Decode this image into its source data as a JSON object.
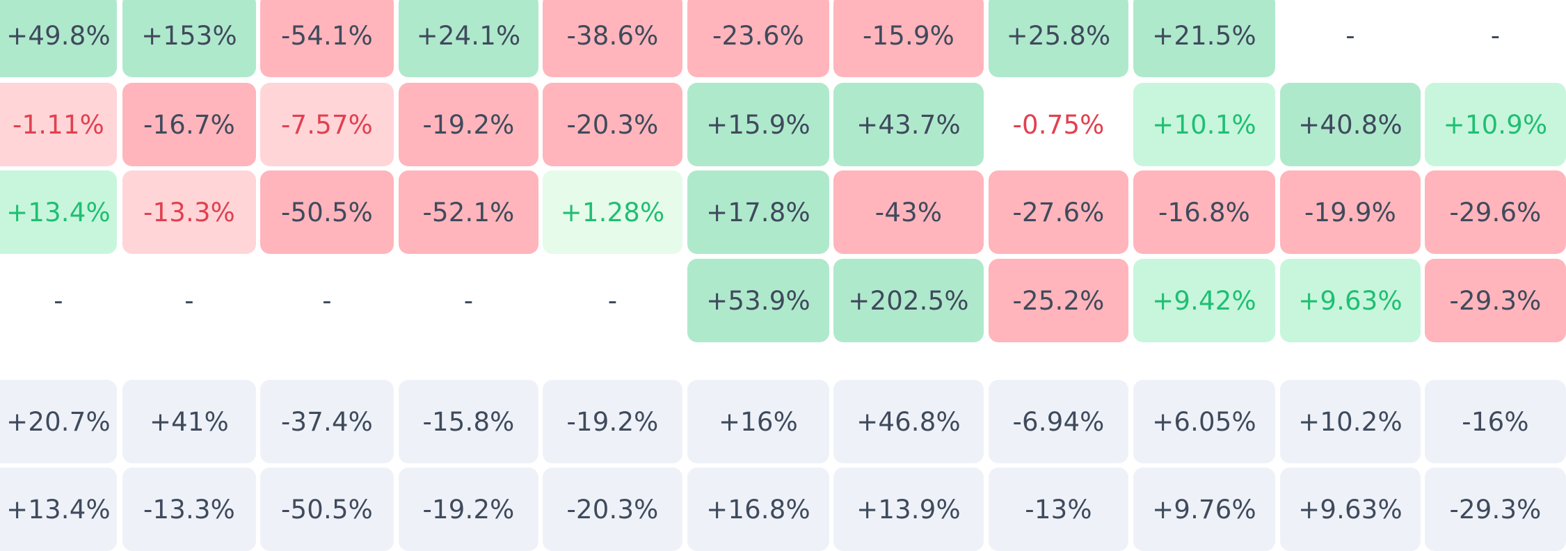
{
  "rows": [
    {
      "cells": [
        {
          "text": "+49.8%",
          "style": "green"
        },
        {
          "text": "+153%",
          "style": "green"
        },
        {
          "text": "-54.1%",
          "style": "red"
        },
        {
          "text": "+24.1%",
          "style": "green"
        },
        {
          "text": "-38.6%",
          "style": "red"
        },
        {
          "text": "-23.6%",
          "style": "red"
        },
        {
          "text": "-15.9%",
          "style": "red"
        },
        {
          "text": "+25.8%",
          "style": "green"
        },
        {
          "text": "+21.5%",
          "style": "green"
        },
        {
          "text": "-",
          "style": "none"
        },
        {
          "text": "-",
          "style": "none"
        }
      ]
    },
    {
      "cells": [
        {
          "text": "-1.11%",
          "style": "lred"
        },
        {
          "text": "-16.7%",
          "style": "red"
        },
        {
          "text": "-7.57%",
          "style": "lred"
        },
        {
          "text": "-19.2%",
          "style": "red"
        },
        {
          "text": "-20.3%",
          "style": "red"
        },
        {
          "text": "+15.9%",
          "style": "green"
        },
        {
          "text": "+43.7%",
          "style": "green"
        },
        {
          "text": "-0.75%",
          "style": "nonered"
        },
        {
          "text": "+10.1%",
          "style": "lgreen"
        },
        {
          "text": "+40.8%",
          "style": "green"
        },
        {
          "text": "+10.9%",
          "style": "lgreen"
        }
      ]
    },
    {
      "cells": [
        {
          "text": "+13.4%",
          "style": "lgreen"
        },
        {
          "text": "-13.3%",
          "style": "lred"
        },
        {
          "text": "-50.5%",
          "style": "red"
        },
        {
          "text": "-52.1%",
          "style": "red"
        },
        {
          "text": "+1.28%",
          "style": "pgreen"
        },
        {
          "text": "+17.8%",
          "style": "green"
        },
        {
          "text": "-43%",
          "style": "red"
        },
        {
          "text": "-27.6%",
          "style": "red"
        },
        {
          "text": "-16.8%",
          "style": "red"
        },
        {
          "text": "-19.9%",
          "style": "red"
        },
        {
          "text": "-29.6%",
          "style": "red"
        }
      ]
    },
    {
      "cells": [
        {
          "text": "-",
          "style": "none"
        },
        {
          "text": "-",
          "style": "none"
        },
        {
          "text": "-",
          "style": "none"
        },
        {
          "text": "-",
          "style": "none"
        },
        {
          "text": "-",
          "style": "none"
        },
        {
          "text": "+53.9%",
          "style": "green"
        },
        {
          "text": "+202.5%",
          "style": "green"
        },
        {
          "text": "-25.2%",
          "style": "red"
        },
        {
          "text": "+9.42%",
          "style": "lgreen"
        },
        {
          "text": "+9.63%",
          "style": "lgreen"
        },
        {
          "text": "-29.3%",
          "style": "red"
        }
      ]
    },
    {
      "cells": [
        {
          "text": "+20.7%",
          "style": "gray"
        },
        {
          "text": "+41%",
          "style": "gray"
        },
        {
          "text": "-37.4%",
          "style": "gray"
        },
        {
          "text": "-15.8%",
          "style": "gray"
        },
        {
          "text": "-19.2%",
          "style": "gray"
        },
        {
          "text": "+16%",
          "style": "gray"
        },
        {
          "text": "+46.8%",
          "style": "gray"
        },
        {
          "text": "-6.94%",
          "style": "gray"
        },
        {
          "text": "+6.05%",
          "style": "gray"
        },
        {
          "text": "+10.2%",
          "style": "gray"
        },
        {
          "text": "-16%",
          "style": "gray"
        }
      ]
    },
    {
      "cells": [
        {
          "text": "+13.4%",
          "style": "gray"
        },
        {
          "text": "-13.3%",
          "style": "gray"
        },
        {
          "text": "-50.5%",
          "style": "gray"
        },
        {
          "text": "-19.2%",
          "style": "gray"
        },
        {
          "text": "-20.3%",
          "style": "gray"
        },
        {
          "text": "+16.8%",
          "style": "gray"
        },
        {
          "text": "+13.9%",
          "style": "gray"
        },
        {
          "text": "-13%",
          "style": "gray"
        },
        {
          "text": "+9.76%",
          "style": "gray"
        },
        {
          "text": "+9.63%",
          "style": "gray"
        },
        {
          "text": "-29.3%",
          "style": "gray"
        }
      ]
    }
  ]
}
